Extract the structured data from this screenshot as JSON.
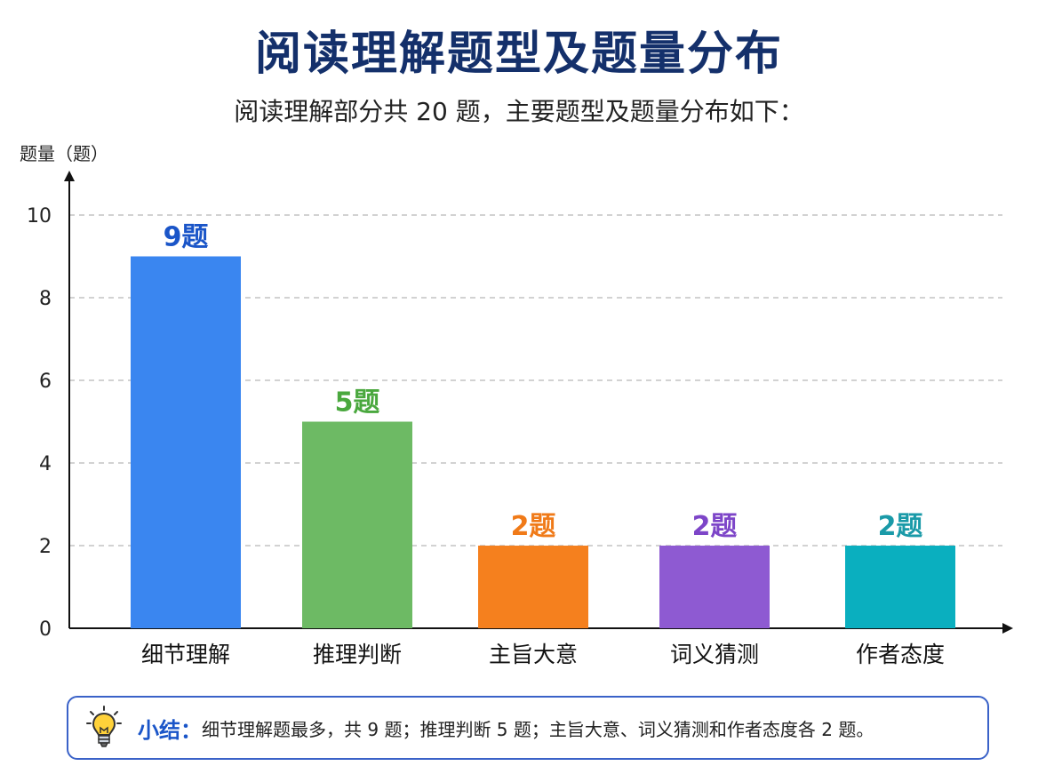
{
  "header": {
    "title": "阅读理解题型及题量分布",
    "subtitle": "阅读理解部分共 20 题，主要题型及题量分布如下："
  },
  "chart_data": {
    "type": "bar",
    "ylabel": "题量（题）",
    "xlabel": "",
    "ylim": [
      0,
      10
    ],
    "yticks": [
      0,
      2,
      4,
      6,
      8,
      10
    ],
    "grid": true,
    "categories": [
      "细节理解",
      "推理判断",
      "主旨大意",
      "词义猜测",
      "作者态度"
    ],
    "values": [
      9,
      5,
      2,
      2,
      2
    ],
    "value_labels": [
      "9题",
      "5题",
      "2题",
      "2题",
      "2题"
    ],
    "colors": [
      "#3a86f0",
      "#6dba64",
      "#f5801e",
      "#8e5ad2",
      "#0aafbf"
    ],
    "label_colors": [
      "#1a55c8",
      "#4aa83e",
      "#f07a18",
      "#7d45c8",
      "#1a9aa8"
    ]
  },
  "summary": {
    "icon": "lightbulb-icon",
    "label": "小结：",
    "text": "细节理解题最多，共 9 题；推理判断 5 题；主旨大意、词义猜测和作者态度各 2 题。"
  }
}
